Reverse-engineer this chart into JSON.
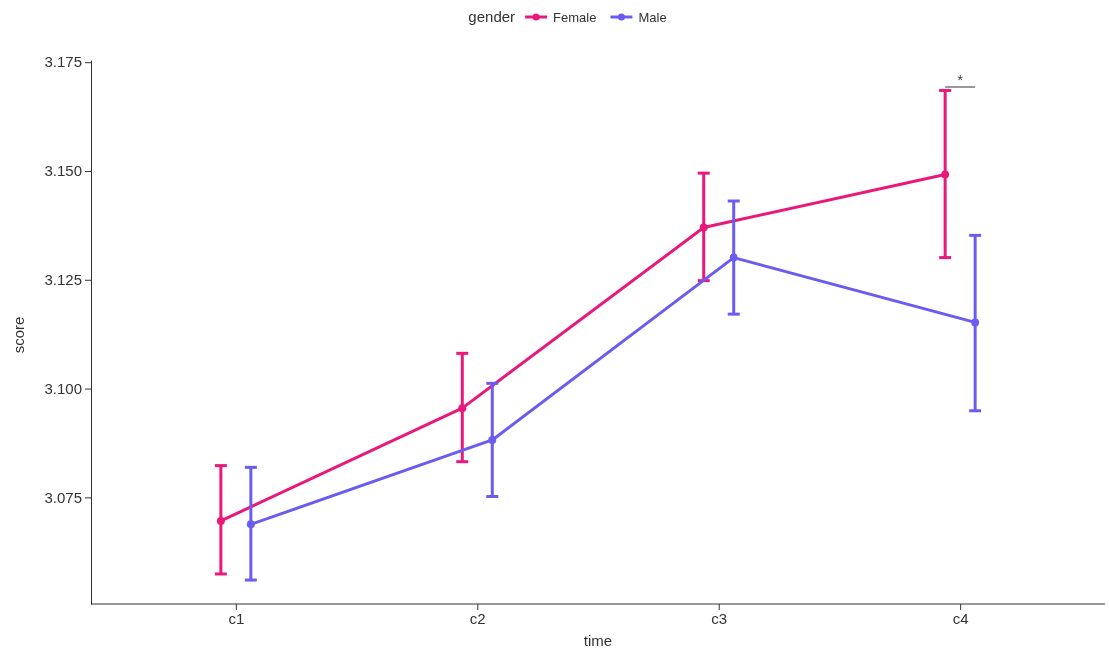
{
  "chart_data": {
    "type": "line",
    "xlabel": "time",
    "ylabel": "score",
    "legend_title": "gender",
    "legend": "top",
    "marker": "circle",
    "line_style": "solid",
    "grid": false,
    "categories": [
      "c1",
      "c2",
      "c3",
      "c4"
    ],
    "ylim": [
      3.0505,
      3.1755
    ],
    "yticks": [
      {
        "value": 3.075,
        "label": "3.075"
      },
      {
        "value": 3.1,
        "label": "3.100"
      },
      {
        "value": 3.125,
        "label": "3.125"
      },
      {
        "value": 3.15,
        "label": "3.150"
      },
      {
        "value": 3.175,
        "label": "3.175"
      }
    ],
    "series": [
      {
        "name": "Female",
        "color": "#e8197a",
        "values": [
          3.0696,
          3.0955,
          3.137,
          3.1492
        ],
        "errors": [
          [
            3.0574,
            3.0823
          ],
          [
            3.0832,
            3.1081
          ],
          [
            3.1248,
            3.1495
          ],
          [
            3.1301,
            3.1685
          ]
        ]
      },
      {
        "name": "Male",
        "color": "#6a5cf0",
        "values": [
          3.0688,
          3.0882,
          3.1301,
          3.1152
        ],
        "errors": [
          [
            3.056,
            3.0819
          ],
          [
            3.0752,
            3.1012
          ],
          [
            3.1171,
            3.1431
          ],
          [
            3.0949,
            3.1352
          ]
        ]
      }
    ],
    "annotations": [
      "*"
    ]
  }
}
